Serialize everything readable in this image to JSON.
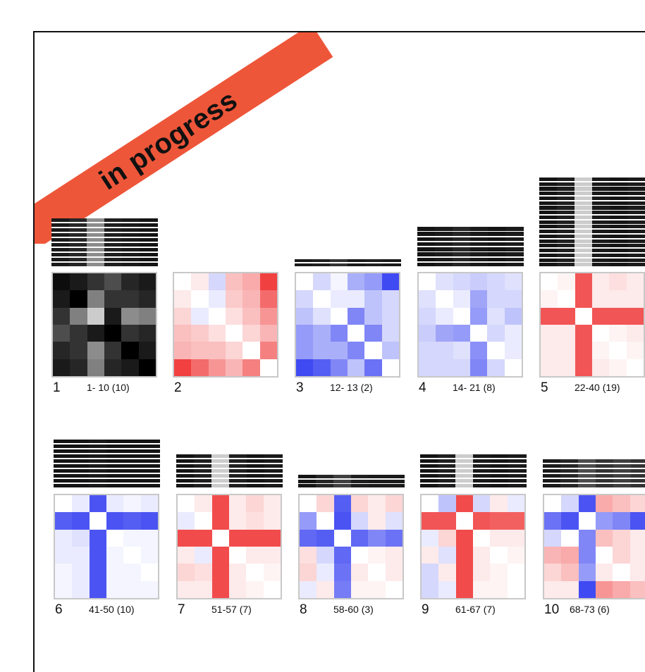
{
  "banner": {
    "text": "in progress",
    "color": "#ee5639"
  },
  "colors": {
    "positive": "#ef2b2b",
    "negative": "#2b36f0",
    "neutral": "#ffffff",
    "grayscale_dark": "#000000"
  },
  "clusters": [
    {
      "number": "1",
      "range": "1- 10 (10)",
      "style": "grayscale",
      "bars": {
        "rows": 10,
        "cols": [
          0.1,
          0.15,
          0.55,
          0.12,
          0.1,
          0.08
        ]
      },
      "matrix": [
        [
          0.05,
          0.1,
          0.2,
          0.3,
          0.15,
          0.1
        ],
        [
          0.1,
          0.0,
          0.5,
          0.2,
          0.2,
          0.15
        ],
        [
          0.2,
          0.5,
          0.8,
          0.1,
          0.55,
          0.5
        ],
        [
          0.3,
          0.2,
          0.1,
          0.0,
          0.2,
          0.15
        ],
        [
          0.15,
          0.2,
          0.55,
          0.2,
          0.0,
          0.1
        ],
        [
          0.1,
          0.15,
          0.5,
          0.15,
          0.1,
          0.0
        ]
      ]
    },
    {
      "number": "2",
      "range": "",
      "style": "color",
      "bars": null,
      "matrix": [
        [
          0,
          0.1,
          -0.2,
          0.3,
          0.4,
          0.9
        ],
        [
          0.1,
          0,
          -0.1,
          0.25,
          0.35,
          0.7
        ],
        [
          0.2,
          -0.1,
          0,
          0.15,
          0.3,
          0.5
        ],
        [
          0.3,
          0.25,
          0.15,
          0,
          0.2,
          0.35
        ],
        [
          0.35,
          0.3,
          0.3,
          0.2,
          0,
          0.6
        ],
        [
          0.9,
          0.7,
          0.5,
          0.35,
          0.6,
          0
        ]
      ]
    },
    {
      "number": "3",
      "range": "12- 13 (2)",
      "style": "color",
      "bars": {
        "rows": 2,
        "cols": [
          0.1,
          0.12,
          0.2,
          0.1,
          0.12,
          0.1
        ]
      },
      "matrix": [
        [
          0,
          -0.2,
          -0.05,
          -0.4,
          -0.5,
          -0.9
        ],
        [
          -0.2,
          0,
          -0.1,
          -0.1,
          -0.3,
          -0.2
        ],
        [
          -0.3,
          -0.15,
          0,
          -0.6,
          -0.3,
          -0.2
        ],
        [
          -0.5,
          -0.4,
          -0.6,
          0,
          -0.6,
          -0.2
        ],
        [
          -0.5,
          -0.4,
          -0.4,
          -0.6,
          0,
          -0.3
        ],
        [
          -0.9,
          -0.8,
          -0.6,
          -0.3,
          -0.7,
          0
        ]
      ]
    },
    {
      "number": "4",
      "range": "14- 21 (8)",
      "style": "color",
      "bars": {
        "rows": 8,
        "cols": [
          0.08,
          0.1,
          0.15,
          0.1,
          0.08,
          0.1
        ]
      },
      "matrix": [
        [
          0,
          -0.15,
          -0.2,
          -0.25,
          -0.2,
          -0.15
        ],
        [
          -0.15,
          0,
          -0.1,
          -0.45,
          -0.2,
          -0.2
        ],
        [
          -0.2,
          -0.1,
          0,
          -0.5,
          -0.15,
          -0.3
        ],
        [
          -0.25,
          -0.45,
          -0.5,
          0,
          -0.2,
          -0.1
        ],
        [
          -0.2,
          -0.2,
          -0.15,
          -0.55,
          0,
          -0.1
        ],
        [
          -0.2,
          -0.2,
          -0.2,
          -0.6,
          -0.2,
          0
        ]
      ]
    },
    {
      "number": "5",
      "range": "22-40 (19)",
      "style": "color",
      "bars": {
        "rows": 19,
        "cols": [
          0.08,
          0.12,
          0.8,
          0.1,
          0.08,
          0.1
        ]
      },
      "matrix": [
        [
          0,
          0.05,
          0.8,
          0.1,
          0.15,
          0.1
        ],
        [
          0.05,
          0,
          0.8,
          0.1,
          0.1,
          0.1
        ],
        [
          0.8,
          0.8,
          0,
          0.8,
          0.8,
          0.8
        ],
        [
          0.1,
          0.1,
          0.8,
          0,
          0.05,
          0.1
        ],
        [
          0.1,
          0.1,
          0.8,
          0.05,
          0,
          0.05
        ],
        [
          0.1,
          0.1,
          0.8,
          0.1,
          0.05,
          0
        ]
      ]
    },
    {
      "number": "6",
      "range": "41-50 (10)",
      "style": "color",
      "bars": {
        "rows": 10,
        "cols": [
          0.08,
          0.08,
          0.1,
          0.08,
          0.08,
          0.08
        ]
      },
      "matrix": [
        [
          0,
          -0.1,
          -0.85,
          -0.1,
          -0.05,
          -0.1
        ],
        [
          -0.8,
          -0.85,
          0,
          -0.85,
          -0.8,
          -0.85
        ],
        [
          -0.1,
          -0.15,
          -0.85,
          0,
          -0.05,
          -0.05
        ],
        [
          -0.1,
          -0.1,
          -0.85,
          -0.05,
          0,
          -0.05
        ],
        [
          -0.05,
          -0.1,
          -0.85,
          -0.05,
          -0.05,
          0
        ],
        [
          -0.05,
          -0.1,
          -0.85,
          -0.05,
          -0.05,
          -0.05
        ]
      ]
    },
    {
      "number": "7",
      "range": "51-57 (7)",
      "style": "color",
      "bars": {
        "rows": 7,
        "cols": [
          0.08,
          0.12,
          0.8,
          0.12,
          0.08,
          0.1
        ]
      },
      "matrix": [
        [
          0,
          0.1,
          0.85,
          0.1,
          0.2,
          0.1
        ],
        [
          -0.1,
          0,
          0.85,
          0.1,
          0.15,
          0.1
        ],
        [
          0.85,
          0.85,
          0,
          0.85,
          0.85,
          0.85
        ],
        [
          0.1,
          -0.1,
          0.85,
          0,
          0.1,
          0.1
        ],
        [
          0.2,
          0.15,
          0.85,
          0.1,
          0,
          0.05
        ],
        [
          0.1,
          0.1,
          0.85,
          0.1,
          0.05,
          0
        ]
      ]
    },
    {
      "number": "8",
      "range": "58-60 (3)",
      "style": "color",
      "bars": {
        "rows": 3,
        "cols": [
          0.08,
          0.15,
          0.25,
          0.12,
          0.1,
          0.1
        ]
      },
      "matrix": [
        [
          0,
          0.2,
          -0.8,
          0.2,
          0.1,
          0.2
        ],
        [
          -0.5,
          0,
          -0.85,
          -0.2,
          0.1,
          -0.15
        ],
        [
          -0.75,
          -0.8,
          0,
          -0.75,
          -0.6,
          -0.7
        ],
        [
          0.15,
          -0.2,
          -0.75,
          0,
          0.05,
          0.1
        ],
        [
          0.2,
          -0.1,
          -0.7,
          0.1,
          0,
          0.1
        ],
        [
          -0.1,
          0.1,
          -0.65,
          0.05,
          0.05,
          0
        ]
      ]
    },
    {
      "number": "9",
      "range": "61-67 (7)",
      "style": "color",
      "bars": {
        "rows": 7,
        "cols": [
          0.08,
          0.12,
          0.8,
          0.1,
          0.08,
          0.1
        ]
      },
      "matrix": [
        [
          0,
          -0.3,
          0.85,
          -0.2,
          0.1,
          -0.1
        ],
        [
          0.8,
          0.8,
          0,
          0.8,
          0.75,
          0.75
        ],
        [
          -0.1,
          0.2,
          0.85,
          0,
          0.1,
          0.1
        ],
        [
          0.1,
          -0.15,
          0.85,
          0.1,
          0,
          0.05
        ],
        [
          -0.2,
          0.1,
          0.85,
          0.1,
          0.05,
          0
        ],
        [
          -0.2,
          -0.1,
          0.85,
          0.05,
          0.05,
          0
        ]
      ]
    },
    {
      "number": "10",
      "range": "68-73 (6)",
      "style": "color",
      "bars": {
        "rows": 6,
        "cols": [
          0.1,
          0.15,
          0.3,
          0.2,
          0.25,
          0.2
        ]
      },
      "matrix": [
        [
          0,
          -0.2,
          -0.85,
          0.4,
          0.3,
          0.2
        ],
        [
          -0.7,
          -0.85,
          0,
          -0.5,
          -0.6,
          -0.85
        ],
        [
          -0.2,
          0,
          -0.6,
          0.3,
          0.2,
          0.1
        ],
        [
          0.35,
          0.4,
          -0.6,
          0,
          0.2,
          0.1
        ],
        [
          0.2,
          0.3,
          -0.5,
          0.1,
          0,
          0.1
        ],
        [
          0.1,
          0.1,
          -0.9,
          0.5,
          0.4,
          0.3
        ]
      ]
    }
  ]
}
